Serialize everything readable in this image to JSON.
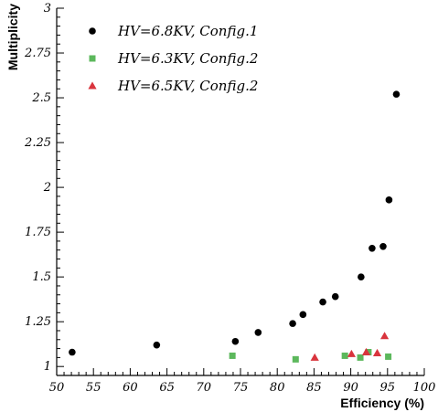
{
  "chart_data": {
    "type": "scatter",
    "title": "",
    "xlabel": "Efficiency (%)",
    "ylabel": "Multiplicity",
    "xlim": [
      50,
      100
    ],
    "ylim": [
      0.95,
      3.0
    ],
    "x_ticks": [
      "50",
      "55",
      "60",
      "65",
      "70",
      "75",
      "80",
      "85",
      "90",
      "95",
      "100"
    ],
    "y_ticks": [
      "1",
      "1.25",
      "1.5",
      "1.75",
      "2",
      "2.25",
      "2.5",
      "2.75",
      "3"
    ],
    "x_tick_values": [
      50,
      55,
      60,
      65,
      70,
      75,
      80,
      85,
      90,
      95,
      100
    ],
    "y_tick_values": [
      1,
      1.25,
      1.5,
      1.75,
      2,
      2.25,
      2.5,
      2.75,
      3
    ],
    "grid": false,
    "legend_position": "top-left",
    "series": [
      {
        "name": "HV=6.8KV, Config.1",
        "marker": "circle",
        "color": "#000000",
        "points": [
          [
            52.1,
            1.08
          ],
          [
            63.6,
            1.12
          ],
          [
            74.3,
            1.14
          ],
          [
            77.4,
            1.19
          ],
          [
            82.1,
            1.24
          ],
          [
            83.5,
            1.29
          ],
          [
            86.2,
            1.36
          ],
          [
            87.9,
            1.39
          ],
          [
            91.4,
            1.5
          ],
          [
            92.9,
            1.66
          ],
          [
            94.4,
            1.67
          ],
          [
            95.2,
            1.93
          ],
          [
            96.2,
            2.52
          ]
        ]
      },
      {
        "name": "HV=6.3KV, Config.2",
        "marker": "square",
        "color": "#5cb85c",
        "points": [
          [
            73.9,
            1.06
          ],
          [
            82.5,
            1.04
          ],
          [
            89.2,
            1.06
          ],
          [
            91.3,
            1.05
          ],
          [
            92.4,
            1.08
          ],
          [
            95.1,
            1.055
          ]
        ]
      },
      {
        "name": "HV=6.5KV, Config.2",
        "marker": "triangle",
        "color": "#d9343d",
        "points": [
          [
            85.1,
            1.05
          ],
          [
            90.1,
            1.07
          ],
          [
            92.1,
            1.08
          ],
          [
            93.6,
            1.075
          ],
          [
            94.6,
            1.17
          ]
        ]
      }
    ]
  }
}
